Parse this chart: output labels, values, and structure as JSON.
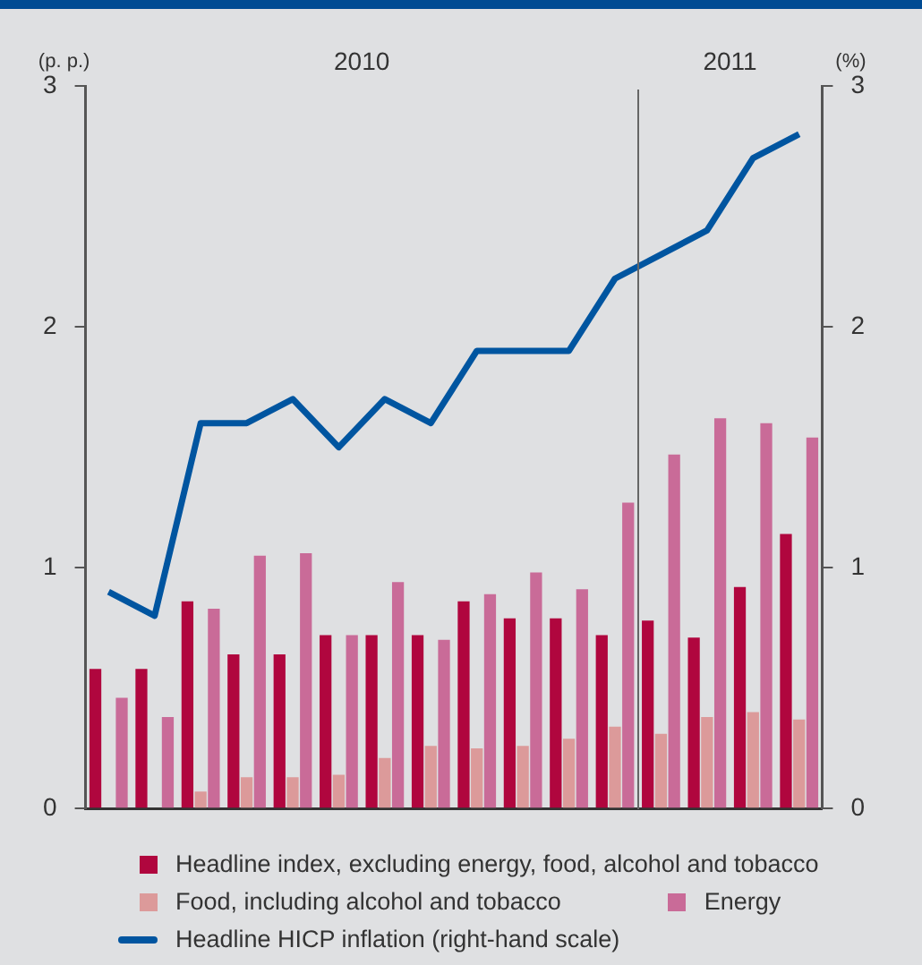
{
  "chart_data": {
    "type": "bar",
    "categories": [
      null,
      null,
      null,
      null,
      null,
      null,
      null,
      null,
      null,
      null,
      null,
      null,
      null,
      null,
      null,
      null
    ],
    "series": [
      {
        "name": "Headline index, excluding energy, food, alcohol and tobacco",
        "color": "#b0063e",
        "values": [
          0.58,
          0.58,
          0.86,
          0.64,
          0.64,
          0.72,
          0.72,
          0.72,
          0.86,
          0.79,
          0.79,
          0.72,
          0.78,
          0.71,
          0.92,
          1.14
        ]
      },
      {
        "name": "Food, including alcohol and tobacco",
        "color": "#dc9a9a",
        "values": [
          0,
          0,
          0.07,
          0.13,
          0.13,
          0.14,
          0.21,
          0.26,
          0.25,
          0.26,
          0.29,
          0.34,
          0.31,
          0.38,
          0.4,
          0.37
        ]
      },
      {
        "name": "Energy",
        "color": "#c96b98",
        "values": [
          0.46,
          0.38,
          0.83,
          1.05,
          1.06,
          0.72,
          0.94,
          0.7,
          0.89,
          0.98,
          0.91,
          1.27,
          1.47,
          1.62,
          1.6,
          1.54
        ]
      },
      {
        "name": "Headline HICP inflation (right-hand scale)",
        "type": "line",
        "axis": "y2",
        "color": "#0055a0",
        "values": [
          0.9,
          0.8,
          1.6,
          1.6,
          1.7,
          1.5,
          1.7,
          1.6,
          1.9,
          1.9,
          1.9,
          2.2,
          2.3,
          2.4,
          2.7,
          2.8
        ]
      }
    ],
    "ylabel": "(p. p.)",
    "y2label": "(%)",
    "ylim": [
      0,
      3
    ],
    "yticks": [
      0,
      1,
      2,
      3
    ],
    "y2lim": [
      0,
      3
    ],
    "y2ticks": [
      0,
      1,
      2,
      3
    ],
    "annotations": [
      "2010",
      "2011"
    ],
    "grid": false,
    "legend": "bottom",
    "marker": "none",
    "tick_labels": "y"
  }
}
